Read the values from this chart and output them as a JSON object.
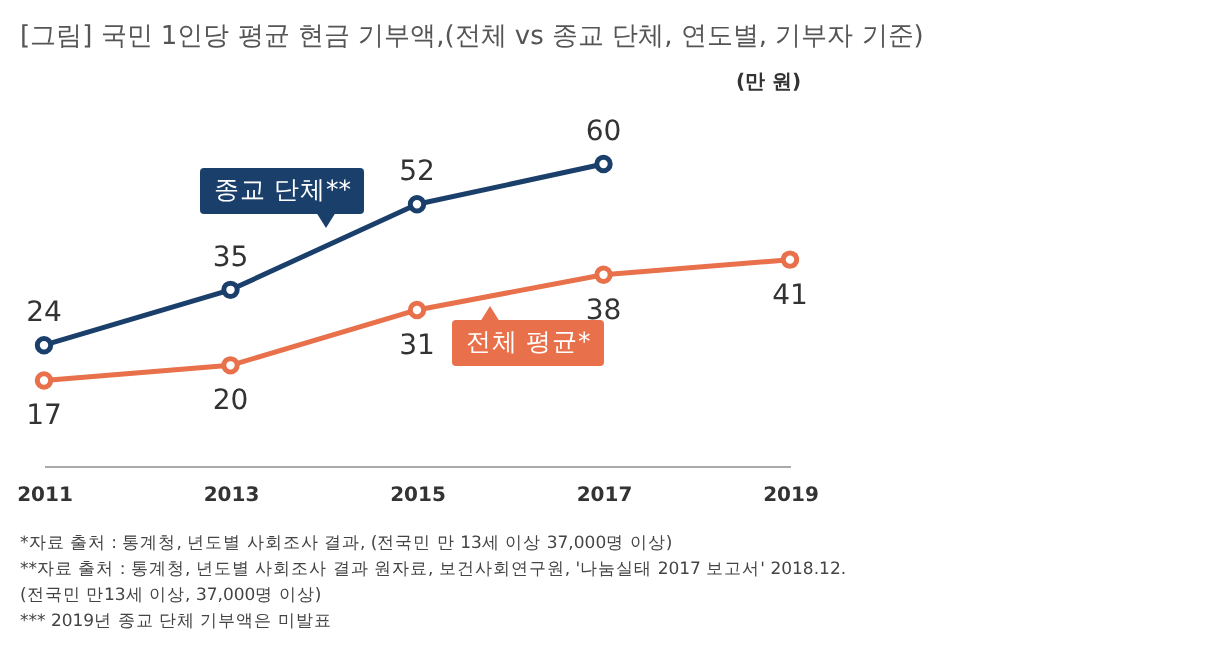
{
  "chart_data": {
    "type": "line",
    "title": "[그림] 국민 1인당 평균 현금 기부액,(전체 vs 종교 단체, 연도별, 기부자 기준)",
    "ylabel": "(만 원)",
    "categories": [
      "2011",
      "2013",
      "2015",
      "2017",
      "2019"
    ],
    "series": [
      {
        "name": "종교 단체**",
        "color": "#1b3f6b",
        "values": [
          24,
          35,
          52,
          60,
          null
        ]
      },
      {
        "name": "전체 평균*",
        "color": "#e8704a",
        "values": [
          17,
          20,
          31,
          38,
          41
        ]
      }
    ],
    "tick_labels": "x",
    "data_labels": true,
    "marker": "circle",
    "annotations": [
      "*자료 출처 : 통계청, 년도별 사회조사 결과, (전국민 만 13세 이상 37,000명 이상)",
      "**자료 출처 : 통계청, 년도별 사회조사 결과 원자료, 보건사회연구원, '나눔실태 2017 보고서' 2018.12.\n(전국민 만13세 이상, 37,000명 이상)",
      "*** 2019년 종교 단체 기부액은 미발표"
    ]
  }
}
